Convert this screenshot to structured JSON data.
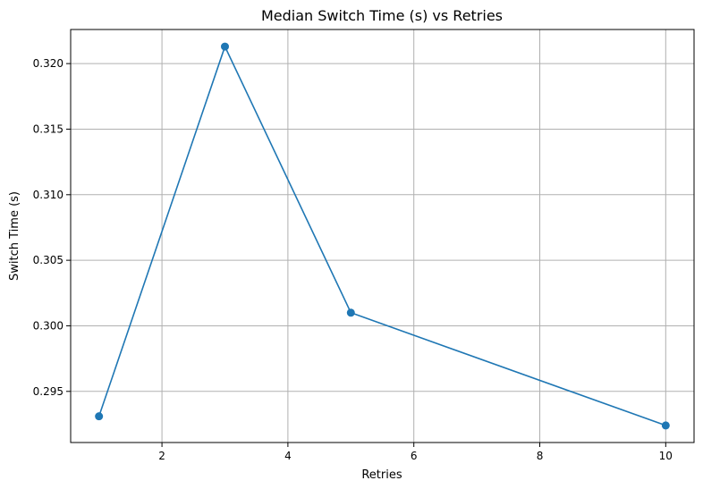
{
  "chart_data": {
    "type": "line",
    "title": "Median Switch Time (s) vs Retries",
    "xlabel": "Retries",
    "ylabel": "Switch Time (s)",
    "x": [
      1,
      3,
      5,
      10
    ],
    "series": [
      {
        "values": [
          0.2931,
          0.3213,
          0.301,
          0.2924
        ],
        "color": "#1f77b4",
        "marker": "circle"
      }
    ],
    "xlim": [
      0.55,
      10.45
    ],
    "ylim": [
      0.2911,
      0.3226
    ],
    "xticks": [
      2,
      4,
      6,
      8,
      10
    ],
    "xtick_labels": [
      "2",
      "4",
      "6",
      "8",
      "10"
    ],
    "yticks": [
      0.295,
      0.3,
      0.305,
      0.31,
      0.315,
      0.32
    ],
    "ytick_labels": [
      "0.295",
      "0.300",
      "0.305",
      "0.310",
      "0.315",
      "0.320"
    ],
    "grid": true,
    "legend": false
  }
}
